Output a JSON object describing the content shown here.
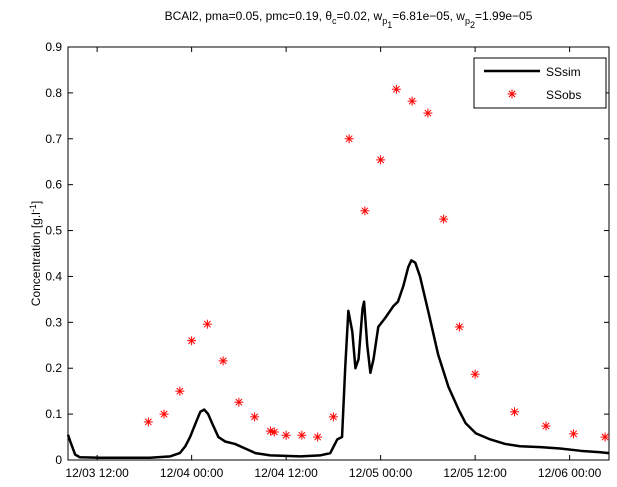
{
  "chart_data": {
    "type": "line",
    "title": [
      {
        "text": "BCAl2, pma=0.05, pmc=0.19, θ"
      },
      {
        "text": "c",
        "sub": 1
      },
      {
        "text": "=0.02, w"
      },
      {
        "text": "p",
        "sub": 1
      },
      {
        "text": "1",
        "sub": 2
      },
      {
        "text": "=6.81e−05, w"
      },
      {
        "text": "p",
        "sub": 1
      },
      {
        "text": "2",
        "sub": 2
      },
      {
        "text": "=1.99e−05"
      }
    ],
    "ylabel": [
      {
        "text": "Concentration [g.l"
      },
      {
        "text": "-1",
        "sup": 1
      },
      {
        "text": "]"
      }
    ],
    "xlim": [
      8.3,
      77.0
    ],
    "ylim": [
      0,
      0.9
    ],
    "xticks": [
      {
        "value": 12,
        "label": "12/03 12:00"
      },
      {
        "value": 24,
        "label": "12/04 00:00"
      },
      {
        "value": 36,
        "label": "12/04 12:00"
      },
      {
        "value": 48,
        "label": "12/05 00:00"
      },
      {
        "value": 60,
        "label": "12/05 12:00"
      },
      {
        "value": 72,
        "label": "12/06 00:00"
      }
    ],
    "yticks": [
      0,
      0.1,
      0.2,
      0.3,
      0.4,
      0.5,
      0.6,
      0.7,
      0.8,
      0.9
    ],
    "legend": "upper right",
    "series": [
      {
        "name": "SSsim",
        "color": "#000000",
        "style": "line",
        "x": [
          8.3,
          8.6,
          9.2,
          9.8,
          12.4,
          18.7,
          21.3,
          22.5,
          23.2,
          23.8,
          24.5,
          25.1,
          25.6,
          26.1,
          26.6,
          27.4,
          28.3,
          29.5,
          30.8,
          32.1,
          34.0,
          37.8,
          40.3,
          41.6,
          42.5,
          43.1,
          43.5,
          43.9,
          44.4,
          44.8,
          45.2,
          45.7,
          45.9,
          46.3,
          46.7,
          47.1,
          47.7,
          48.6,
          49.6,
          50.2,
          50.9,
          51.5,
          51.9,
          52.4,
          53.0,
          54.1,
          55.3,
          56.6,
          57.9,
          58.8,
          60.1,
          61.9,
          63.8,
          65.7,
          68.3,
          70.8,
          73.4,
          75.9,
          77.0
        ],
        "values": [
          0.055,
          0.04,
          0.012,
          0.006,
          0.005,
          0.005,
          0.008,
          0.015,
          0.03,
          0.05,
          0.08,
          0.105,
          0.11,
          0.1,
          0.08,
          0.05,
          0.04,
          0.035,
          0.025,
          0.015,
          0.01,
          0.008,
          0.01,
          0.015,
          0.045,
          0.05,
          0.2,
          0.325,
          0.28,
          0.2,
          0.22,
          0.33,
          0.345,
          0.25,
          0.19,
          0.22,
          0.29,
          0.31,
          0.335,
          0.345,
          0.38,
          0.42,
          0.435,
          0.43,
          0.4,
          0.32,
          0.23,
          0.16,
          0.11,
          0.08,
          0.058,
          0.045,
          0.035,
          0.03,
          0.028,
          0.025,
          0.02,
          0.017,
          0.015
        ]
      },
      {
        "name": "SSobs",
        "color": "#ff0000",
        "style": "asterisk",
        "x": [
          18.5,
          20.5,
          22.5,
          24,
          26,
          28,
          30,
          32,
          34,
          34.5,
          36,
          38,
          40,
          42,
          44,
          46,
          48,
          50,
          52,
          54,
          56,
          58,
          60,
          65,
          69,
          72.5,
          76.5
        ],
        "values": [
          0.083,
          0.1,
          0.15,
          0.26,
          0.296,
          0.216,
          0.126,
          0.094,
          0.063,
          0.061,
          0.054,
          0.054,
          0.05,
          0.094,
          0.7,
          0.543,
          0.654,
          0.808,
          0.782,
          0.756,
          0.525,
          0.29,
          0.187,
          0.105,
          0.074,
          0.057,
          0.05
        ]
      }
    ]
  }
}
